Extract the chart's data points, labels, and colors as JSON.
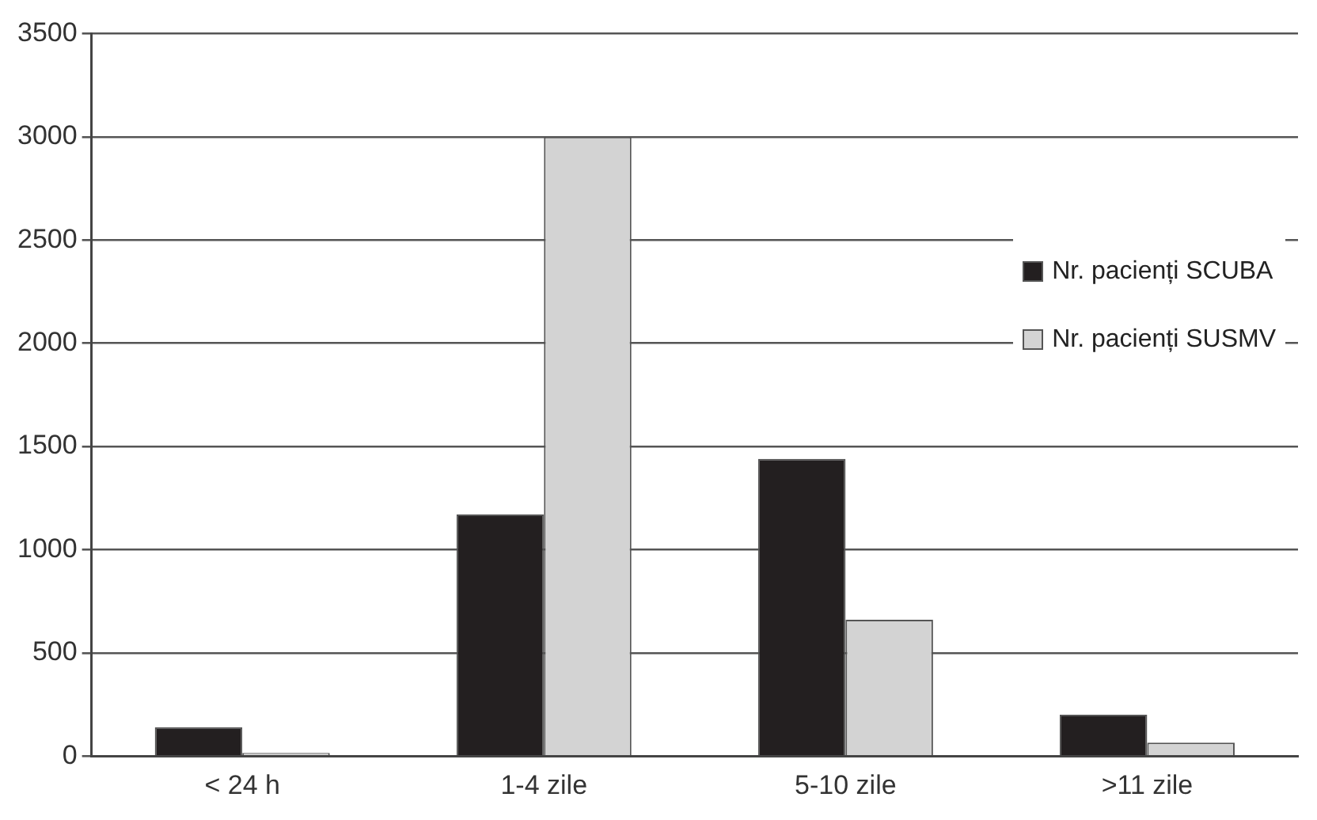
{
  "chart_data": {
    "type": "bar",
    "categories": [
      "< 24 h",
      "1-4 zile",
      "5-10 zile",
      ">11 zile"
    ],
    "series": [
      {
        "name": "Nr. pacienți SCUBA",
        "color": "#231f20",
        "values": [
          140,
          1170,
          1440,
          200
        ]
      },
      {
        "name": "Nr. pacienți SUSMV",
        "color": "#d3d3d3",
        "values": [
          15,
          3000,
          660,
          65
        ]
      }
    ],
    "ylim": [
      0,
      3500
    ],
    "yticks": [
      0,
      500,
      1000,
      1500,
      2000,
      2500,
      3000,
      3500
    ],
    "grid": "y",
    "legend": "top right"
  }
}
